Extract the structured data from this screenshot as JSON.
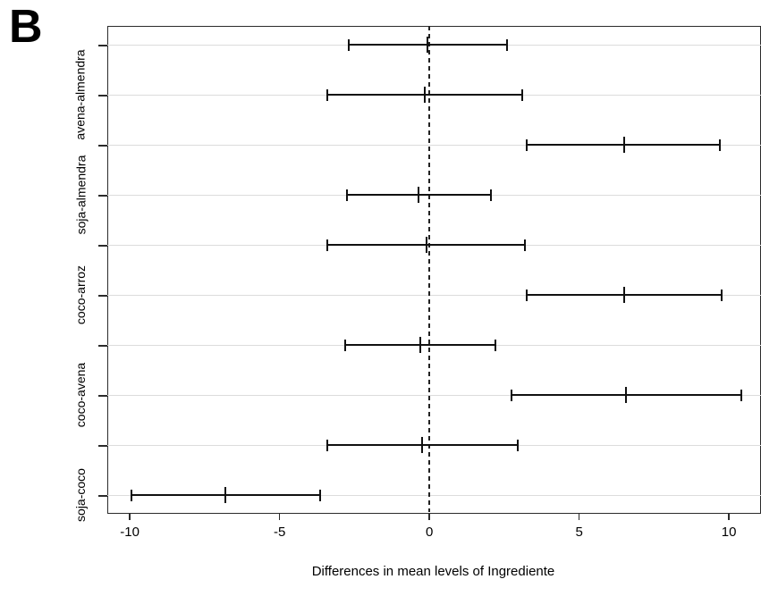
{
  "panel_label": "B",
  "chart_data": {
    "type": "tukey_ci",
    "title": "",
    "xlabel": "Differences in mean levels of Ingrediente",
    "x_ticks": [
      -10,
      -5,
      0,
      5,
      10
    ],
    "xlim": [
      -10.75,
      11.07
    ],
    "zero_reference_line": {
      "x": 0,
      "style": "dashed"
    },
    "grid": "horizontal-light",
    "legend": "none",
    "rows": [
      {
        "tick_label": "",
        "lwr": -2.7,
        "diff": -0.05,
        "upr": 2.6
      },
      {
        "tick_label": "avena-almendra",
        "lwr": -3.4,
        "diff": -0.15,
        "upr": 3.1
      },
      {
        "tick_label": "",
        "lwr": 3.25,
        "diff": 6.5,
        "upr": 9.7
      },
      {
        "tick_label": "soja-almendra",
        "lwr": -2.75,
        "diff": -0.35,
        "upr": 2.05
      },
      {
        "tick_label": "",
        "lwr": -3.4,
        "diff": -0.1,
        "upr": 3.2
      },
      {
        "tick_label": "coco-arroz",
        "lwr": 3.25,
        "diff": 6.5,
        "upr": 9.75
      },
      {
        "tick_label": "",
        "lwr": -2.8,
        "diff": -0.3,
        "upr": 2.2
      },
      {
        "tick_label": "coco-avena",
        "lwr": 2.75,
        "diff": 6.55,
        "upr": 10.4
      },
      {
        "tick_label": "",
        "lwr": -3.4,
        "diff": -0.25,
        "upr": 2.95
      },
      {
        "tick_label": "soja-coco",
        "lwr": -9.95,
        "diff": -6.8,
        "upr": -3.65
      }
    ],
    "colors": {
      "bar": "#111111",
      "grid": "#dcdcdc",
      "box": "#2b2b2b",
      "zero_line": "#222222",
      "text": "#000000",
      "background": "#ffffff"
    }
  }
}
